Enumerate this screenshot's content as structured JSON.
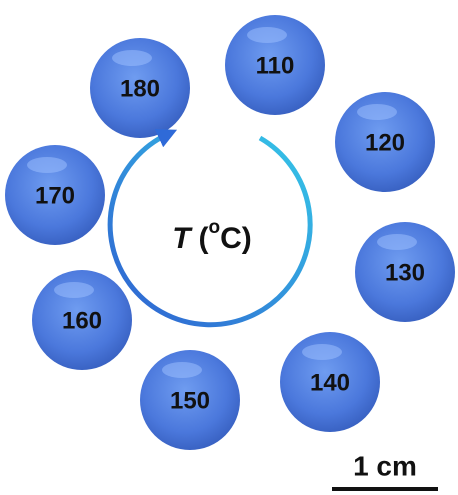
{
  "nodes": [
    {
      "label": "110"
    },
    {
      "label": "120"
    },
    {
      "label": "130"
    },
    {
      "label": "140"
    },
    {
      "label": "150"
    },
    {
      "label": "160"
    },
    {
      "label": "170"
    },
    {
      "label": "180"
    }
  ],
  "center_label": {
    "symbol": "T",
    "open": "(",
    "superscript": "o",
    "unit": "C)"
  },
  "scale_bar": {
    "label": "1 cm"
  }
}
